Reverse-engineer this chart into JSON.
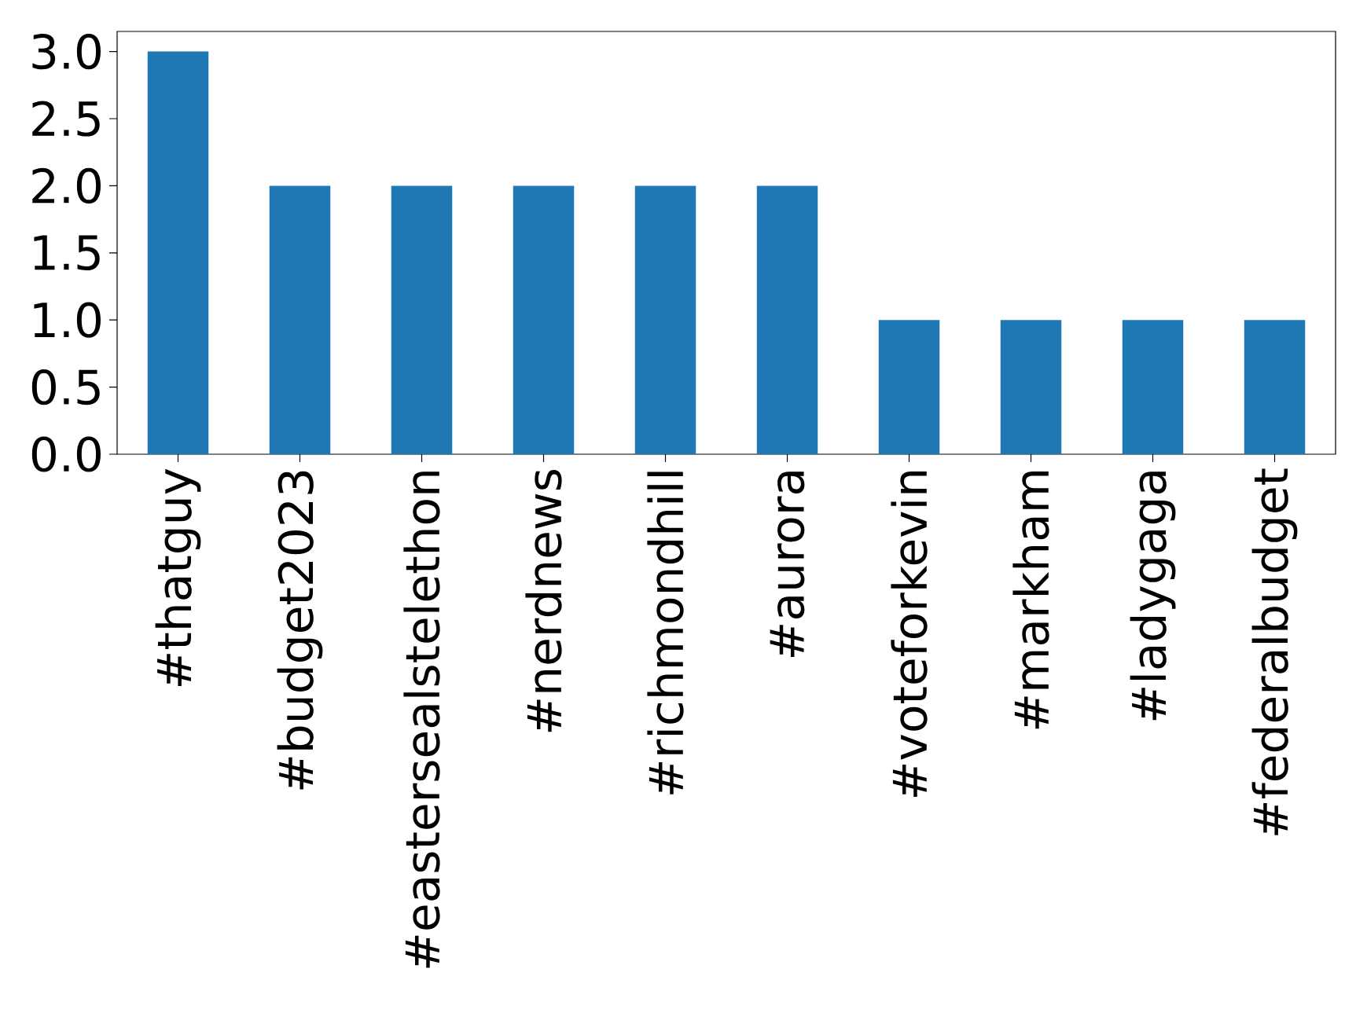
{
  "chart_data": {
    "type": "bar",
    "categories": [
      "#thatguy",
      "#budget2023",
      "#eastersealstelethon",
      "#nerdnews",
      "#richmondhill",
      "#aurora",
      "#voteforkevin",
      "#markham",
      "#ladygaga",
      "#federalbudget"
    ],
    "values": [
      3,
      2,
      2,
      2,
      2,
      2,
      1,
      1,
      1,
      1
    ],
    "color": "#1f77b4",
    "ylim": [
      0,
      3.15
    ],
    "yticks": [
      {
        "value": 0,
        "label": "0.0"
      },
      0.5,
      {
        "value": 1,
        "label": "1.0"
      },
      1.5,
      {
        "value": 2,
        "label": "2.0"
      },
      2.5,
      {
        "value": 3,
        "label": "3.0"
      }
    ]
  }
}
